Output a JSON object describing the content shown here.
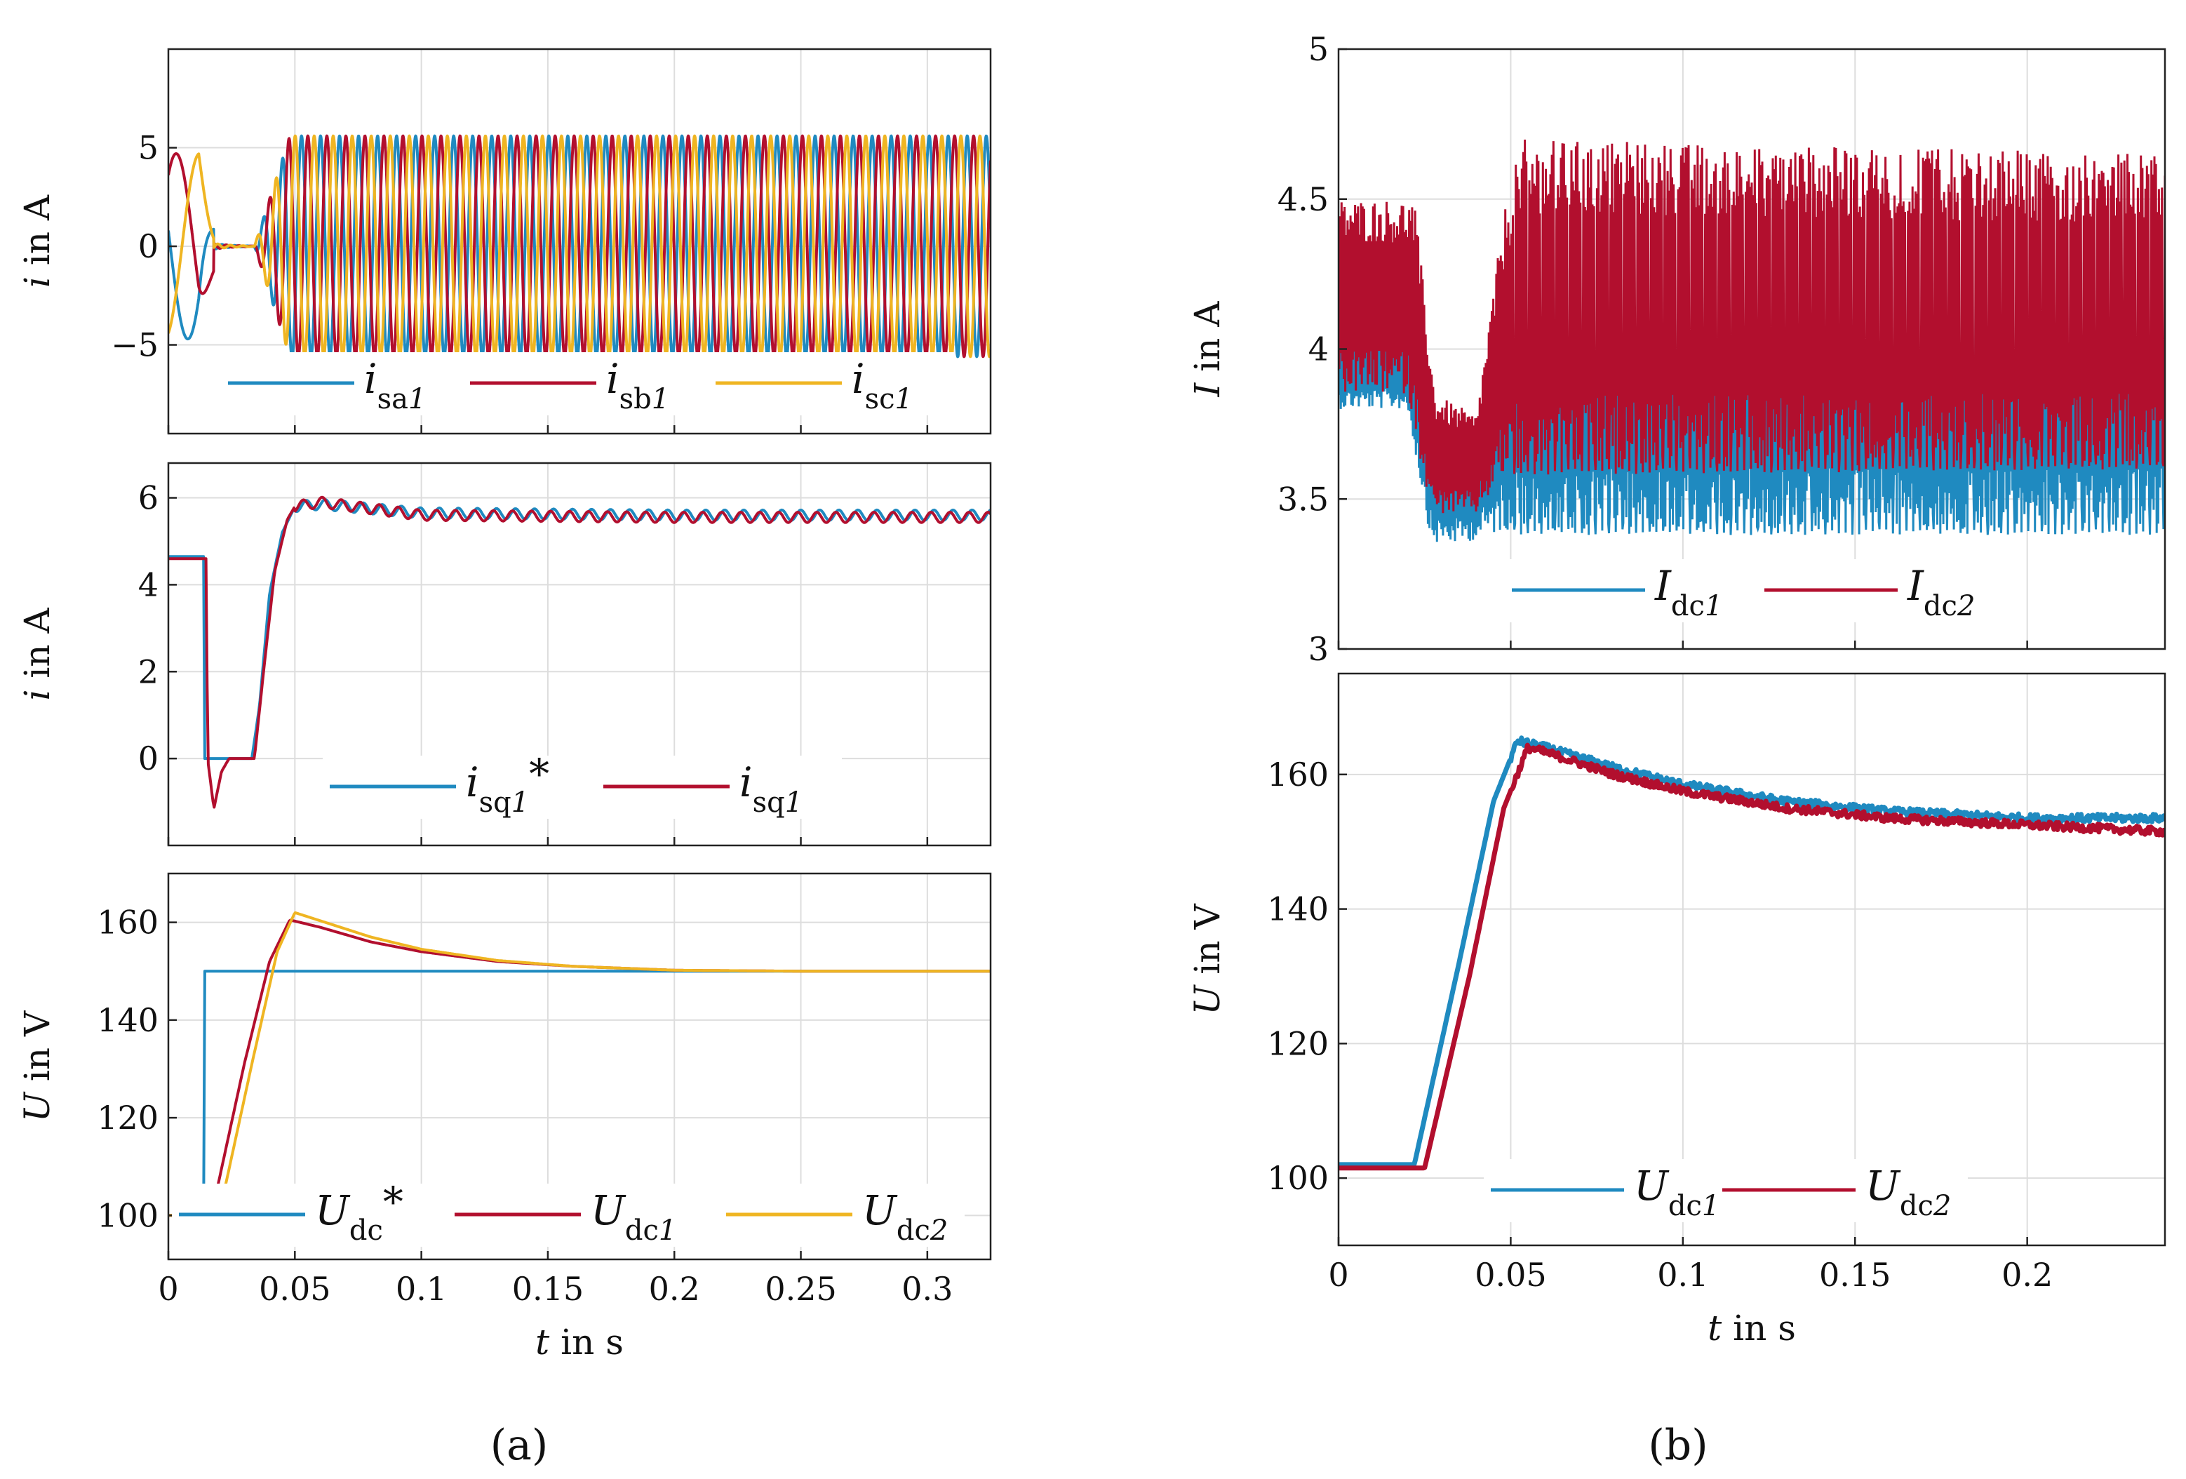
{
  "figure": {
    "caption_a": "(a)",
    "caption_b": "(b)"
  },
  "colors": {
    "blue": "#1f8ac0",
    "red": "#b20f2e",
    "yellow": "#efb522",
    "grid": "#dddddd",
    "axis": "#222222"
  },
  "chart_data": [
    {
      "id": "a1",
      "type": "line",
      "ylabel": "i in A",
      "xlabel": "",
      "xlim": [
        0,
        0.325
      ],
      "ylim": [
        -9.5,
        10
      ],
      "yticks": [
        -5,
        0,
        5
      ],
      "ytick_labels": [
        "−5",
        "0",
        "5"
      ],
      "xticks": [
        0,
        0.05,
        0.1,
        0.15,
        0.2,
        0.25,
        0.3
      ],
      "show_xtick_labels": false,
      "grid": true,
      "legend_position": "bottom",
      "legend": [
        {
          "main": "i",
          "sub": "sa",
          "subit": "1",
          "star": false
        },
        {
          "main": "i",
          "sub": "sb",
          "subit": "1",
          "star": false
        },
        {
          "main": "i",
          "sub": "sc",
          "subit": "1",
          "star": false
        }
      ],
      "series": [
        {
          "name": "isa1",
          "color": "#1f8ac0",
          "model": "abc",
          "phase": 0
        },
        {
          "name": "isb1",
          "color": "#b20f2e",
          "model": "abc",
          "phase": -2.0944
        },
        {
          "name": "isc1",
          "color": "#efb522",
          "model": "abc",
          "phase": 2.0944
        }
      ],
      "waveform": {
        "freq_before": 36,
        "freq_after": 133,
        "amp_before": 4.7,
        "amp_after": 5.6,
        "zero_from": 0.018,
        "zero_to": 0.034,
        "ramp_end": 0.048
      }
    },
    {
      "id": "a2",
      "type": "line",
      "ylabel": "i in A",
      "xlabel": "",
      "xlim": [
        0,
        0.325
      ],
      "ylim": [
        -2,
        6.8
      ],
      "yticks": [
        0,
        2,
        4,
        6
      ],
      "ytick_labels": [
        "0",
        "2",
        "4",
        "6"
      ],
      "xticks": [
        0,
        0.05,
        0.1,
        0.15,
        0.2,
        0.25,
        0.3
      ],
      "show_xtick_labels": false,
      "grid": true,
      "legend_position": "bottom",
      "legend": [
        {
          "main": "i",
          "sub": "sq",
          "subit": "1",
          "star": true
        },
        {
          "main": "i",
          "sub": "sq",
          "subit": "1",
          "star": false
        }
      ],
      "series": [
        {
          "name": "isq1*",
          "color": "#1f8ac0",
          "x": [
            0,
            0.014,
            0.0141,
            0.033,
            0.036,
            0.04,
            0.045,
            0.05,
            0.06,
            0.1,
            0.2,
            0.325
          ],
          "y": [
            4.65,
            4.65,
            0,
            0,
            1.2,
            3.8,
            5.2,
            5.8,
            5.85,
            5.65,
            5.6,
            5.6
          ]
        },
        {
          "name": "isq1",
          "color": "#b20f2e",
          "x": [
            0,
            0.015,
            0.0155,
            0.018,
            0.021,
            0.024,
            0.034,
            0.038,
            0.042,
            0.047,
            0.05,
            0.06,
            0.1,
            0.2,
            0.325
          ],
          "y": [
            4.6,
            4.6,
            0,
            -1.15,
            -0.3,
            0,
            0,
            2.2,
            4.3,
            5.5,
            5.8,
            5.9,
            5.6,
            5.55,
            5.55
          ]
        }
      ]
    },
    {
      "id": "a3",
      "type": "line",
      "ylabel": "U in V",
      "xlabel": "t in s",
      "xlim": [
        0,
        0.325
      ],
      "ylim": [
        91,
        170
      ],
      "yticks": [
        100,
        120,
        140,
        160
      ],
      "ytick_labels": [
        "100",
        "120",
        "140",
        "160"
      ],
      "xticks": [
        0,
        0.05,
        0.1,
        0.15,
        0.2,
        0.25,
        0.3
      ],
      "xtick_labels": [
        "0",
        "0.05",
        "0.1",
        "0.15",
        "0.2",
        "0.25",
        "0.3"
      ],
      "show_xtick_labels": true,
      "grid": true,
      "legend_position": "bottom",
      "legend": [
        {
          "main": "U",
          "sub": "dc",
          "subit": "",
          "star": true
        },
        {
          "main": "U",
          "sub": "dc",
          "subit": "1",
          "star": false
        },
        {
          "main": "U",
          "sub": "dc",
          "subit": "2",
          "star": false
        }
      ],
      "series": [
        {
          "name": "Udc*",
          "color": "#1f8ac0",
          "x": [
            0,
            0.014,
            0.0141,
            0.325
          ],
          "y": [
            100,
            100,
            150,
            150
          ]
        },
        {
          "name": "Udc1",
          "color": "#b20f2e",
          "x": [
            0,
            0.017,
            0.03,
            0.04,
            0.048,
            0.06,
            0.08,
            0.1,
            0.13,
            0.16,
            0.2,
            0.25,
            0.325
          ],
          "y": [
            100,
            100,
            131,
            152,
            160.5,
            159,
            156,
            154,
            152,
            151,
            150.2,
            150,
            150
          ]
        },
        {
          "name": "Udc2",
          "color": "#efb522",
          "x": [
            0,
            0.02,
            0.033,
            0.043,
            0.05,
            0.062,
            0.08,
            0.1,
            0.13,
            0.16,
            0.2,
            0.25,
            0.325
          ],
          "y": [
            100,
            100,
            131,
            154,
            162,
            160,
            157,
            154.5,
            152.2,
            151,
            150.2,
            150,
            150
          ]
        }
      ]
    },
    {
      "id": "b1",
      "type": "line",
      "ylabel": "I in A",
      "xlabel": "",
      "xlim": [
        0,
        0.24
      ],
      "ylim": [
        3,
        5
      ],
      "yticks": [
        3,
        3.5,
        4,
        4.5,
        5
      ],
      "ytick_labels": [
        "3",
        "3.5",
        "4",
        "4.5",
        "5"
      ],
      "xticks": [
        0,
        0.05,
        0.1,
        0.15,
        0.2
      ],
      "show_xtick_labels": false,
      "grid": true,
      "legend_position": "bottom",
      "legend": [
        {
          "main": "I",
          "sub": "dc",
          "subit": "1",
          "star": false
        },
        {
          "main": "I",
          "sub": "dc",
          "subit": "2",
          "star": false
        }
      ],
      "series": [
        {
          "name": "Idc1",
          "color": "#1f8ac0",
          "model": "band",
          "upper_x": [
            0,
            0.022,
            0.028,
            0.04,
            0.05,
            0.06,
            0.24
          ],
          "upper_y": [
            4.1,
            4.1,
            3.75,
            3.72,
            4.25,
            4.3,
            4.3
          ],
          "lower_x": [
            0,
            0.02,
            0.027,
            0.035,
            0.045,
            0.05,
            0.24
          ],
          "lower_y": [
            3.8,
            3.8,
            3.35,
            3.35,
            3.38,
            3.4,
            3.4
          ]
        },
        {
          "name": "Idc2",
          "color": "#b20f2e",
          "model": "band",
          "upper_x": [
            0,
            0.022,
            0.028,
            0.04,
            0.048,
            0.052,
            0.24
          ],
          "upper_y": [
            4.5,
            4.5,
            3.85,
            3.78,
            4.45,
            4.7,
            4.65
          ],
          "lower_x": [
            0,
            0.02,
            0.027,
            0.04,
            0.05,
            0.06,
            0.24
          ],
          "lower_y": [
            3.85,
            3.85,
            3.45,
            3.45,
            3.6,
            3.6,
            3.62
          ]
        }
      ]
    },
    {
      "id": "b2",
      "type": "line",
      "ylabel": "U in V",
      "xlabel": "t in s",
      "xlim": [
        0,
        0.24
      ],
      "ylim": [
        90,
        175
      ],
      "yticks": [
        100,
        120,
        140,
        160
      ],
      "ytick_labels": [
        "100",
        "120",
        "140",
        "160"
      ],
      "xticks": [
        0,
        0.05,
        0.1,
        0.15,
        0.2
      ],
      "xtick_labels": [
        "0",
        "0.05",
        "0.1",
        "0.15",
        "0.2"
      ],
      "show_xtick_labels": true,
      "grid": true,
      "legend_position": "bottom",
      "legend": [
        {
          "main": "U",
          "sub": "dc",
          "subit": "1",
          "star": false
        },
        {
          "main": "U",
          "sub": "dc",
          "subit": "2",
          "star": false
        }
      ],
      "series": [
        {
          "name": "Udc1",
          "color": "#1f8ac0",
          "x": [
            0,
            0.022,
            0.035,
            0.045,
            0.052,
            0.06,
            0.08,
            0.1,
            0.13,
            0.16,
            0.2,
            0.24
          ],
          "y": [
            102,
            102,
            132,
            156,
            165,
            164,
            161,
            158.5,
            156,
            154.5,
            153.5,
            153.5
          ]
        },
        {
          "name": "Udc2",
          "color": "#b20f2e",
          "x": [
            0,
            0.025,
            0.038,
            0.048,
            0.055,
            0.062,
            0.08,
            0.1,
            0.13,
            0.16,
            0.2,
            0.24
          ],
          "y": [
            101.5,
            101.5,
            130,
            155,
            164,
            163,
            160,
            157.5,
            155,
            153.5,
            152.5,
            151.5
          ]
        }
      ]
    }
  ]
}
